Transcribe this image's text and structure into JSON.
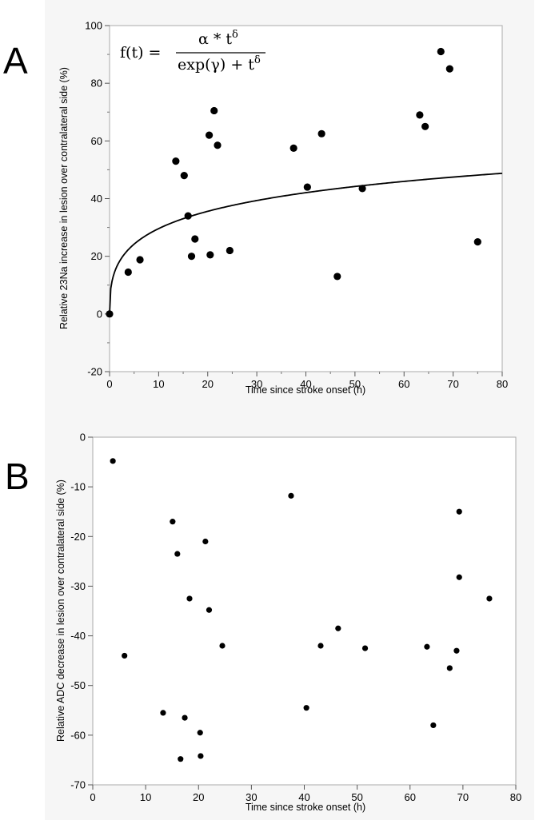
{
  "chart_data": [
    {
      "type": "scatter",
      "panel": "A",
      "title": "",
      "xlabel": "Time since stroke onset (h)",
      "ylabel": "Relative 23Na increase in lesion over contralateral side (%)",
      "xlim": [
        0,
        80
      ],
      "ylim": [
        -20,
        100
      ],
      "xticks": [
        0,
        10,
        20,
        30,
        40,
        50,
        60,
        70,
        80
      ],
      "yticks": [
        -20,
        0,
        20,
        40,
        60,
        80,
        100
      ],
      "grid": false,
      "formula": {
        "lhs": "f(t) =",
        "numerator_base": "α * t",
        "numerator_exp": "δ",
        "denominator_base": "exp(γ) + t",
        "denominator_exp": "δ"
      },
      "points": [
        {
          "x": 0,
          "y": 0
        },
        {
          "x": 3.8,
          "y": 14.5
        },
        {
          "x": 6.2,
          "y": 18.8
        },
        {
          "x": 13.5,
          "y": 53
        },
        {
          "x": 15.2,
          "y": 48
        },
        {
          "x": 16.0,
          "y": 34
        },
        {
          "x": 16.7,
          "y": 20
        },
        {
          "x": 17.4,
          "y": 26
        },
        {
          "x": 20.3,
          "y": 62
        },
        {
          "x": 20.5,
          "y": 20.5
        },
        {
          "x": 21.3,
          "y": 70.5
        },
        {
          "x": 22.0,
          "y": 58.5
        },
        {
          "x": 24.5,
          "y": 22
        },
        {
          "x": 37.5,
          "y": 57.5
        },
        {
          "x": 40.3,
          "y": 44
        },
        {
          "x": 43.2,
          "y": 62.5
        },
        {
          "x": 46.4,
          "y": 13
        },
        {
          "x": 51.5,
          "y": 43.5
        },
        {
          "x": 63.2,
          "y": 69
        },
        {
          "x": 64.3,
          "y": 65
        },
        {
          "x": 67.5,
          "y": 91
        },
        {
          "x": 69.3,
          "y": 85
        },
        {
          "x": 75.0,
          "y": 25
        }
      ],
      "fit_curve": {
        "alpha": 97.4,
        "gamma": 1.75,
        "delta": 0.4
      }
    },
    {
      "type": "scatter",
      "panel": "B",
      "title": "",
      "xlabel": "Time since stroke onset (h)",
      "ylabel": "Relative ADC decrease in lesion over contralateral side (%)",
      "xlim": [
        0,
        80
      ],
      "ylim": [
        -70,
        0
      ],
      "xticks": [
        0,
        10,
        20,
        30,
        40,
        50,
        60,
        70,
        80
      ],
      "yticks": [
        0,
        -10,
        -20,
        -30,
        -40,
        -50,
        -60,
        -70
      ],
      "grid": false,
      "points": [
        {
          "x": 3.8,
          "y": -4.8
        },
        {
          "x": 6.0,
          "y": -44
        },
        {
          "x": 13.3,
          "y": -55.5
        },
        {
          "x": 15.1,
          "y": -17
        },
        {
          "x": 16.0,
          "y": -23.5
        },
        {
          "x": 16.6,
          "y": -64.8
        },
        {
          "x": 17.4,
          "y": -56.5
        },
        {
          "x": 18.3,
          "y": -32.5
        },
        {
          "x": 20.3,
          "y": -59.5
        },
        {
          "x": 20.4,
          "y": -64.2
        },
        {
          "x": 21.3,
          "y": -21
        },
        {
          "x": 22.0,
          "y": -34.8
        },
        {
          "x": 24.5,
          "y": -42
        },
        {
          "x": 37.5,
          "y": -11.8
        },
        {
          "x": 40.4,
          "y": -54.5
        },
        {
          "x": 43.1,
          "y": -42
        },
        {
          "x": 46.4,
          "y": -38.5
        },
        {
          "x": 51.5,
          "y": -42.5
        },
        {
          "x": 63.2,
          "y": -42.2
        },
        {
          "x": 64.4,
          "y": -58
        },
        {
          "x": 67.5,
          "y": -46.5
        },
        {
          "x": 68.8,
          "y": -43
        },
        {
          "x": 69.3,
          "y": -15
        },
        {
          "x": 69.3,
          "y": -28.2
        },
        {
          "x": 75.0,
          "y": -32.5
        }
      ]
    }
  ]
}
